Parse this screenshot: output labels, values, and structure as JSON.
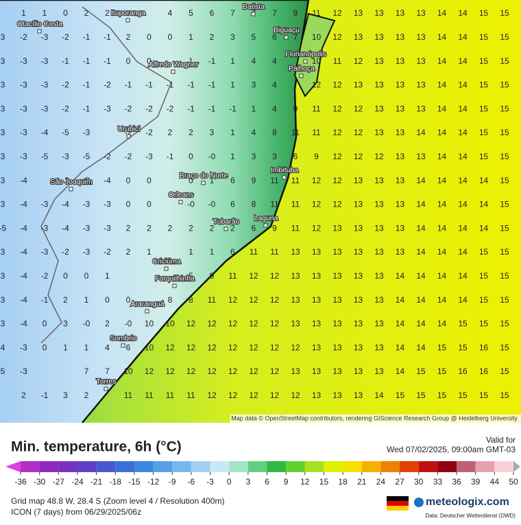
{
  "map": {
    "attribution": "Map data © OpenStreetMap contributors, rendering GIScience Research Group @ Heidelberg University",
    "cities": [
      "Otacílio Costa",
      "Ituporanga",
      "Batista",
      "Biguaçu",
      "Florianópolis",
      "Palhoça",
      "Alfredo Wagner",
      "Urubici",
      "Braço do Norte",
      "Imbituba",
      "São Joaquim",
      "Orleans",
      "Tubarão",
      "Laguna",
      "Criciúma",
      "Forquilhinha",
      "Araranguá",
      "Sombrio",
      "Torres"
    ],
    "grid": [
      [
        null,
        1,
        1,
        0,
        2,
        2,
        null,
        null,
        4,
        5,
        6,
        7,
        7,
        7,
        9,
        11,
        12,
        13,
        13,
        13,
        13,
        14,
        14,
        15,
        15
      ],
      [
        3,
        -2,
        -3,
        -2,
        -1,
        -1,
        2,
        0,
        0,
        1,
        2,
        3,
        5,
        6,
        7,
        10,
        12,
        13,
        13,
        13,
        13,
        14,
        14,
        15,
        15
      ],
      [
        3,
        -3,
        -3,
        -1,
        -1,
        -1,
        0,
        0,
        null,
        1,
        -1,
        1,
        4,
        4,
        null,
        10,
        11,
        12,
        13,
        13,
        13,
        14,
        14,
        15,
        15
      ],
      [
        3,
        -3,
        -3,
        -2,
        -1,
        -2,
        -1,
        -1,
        -1,
        -1,
        -1,
        1,
        3,
        4,
        null,
        12,
        12,
        13,
        13,
        13,
        13,
        14,
        14,
        15,
        15
      ],
      [
        3,
        -3,
        -3,
        -2,
        -1,
        -3,
        -2,
        -2,
        -2,
        -1,
        -1,
        -1,
        1,
        4,
        9,
        11,
        12,
        12,
        13,
        13,
        13,
        14,
        14,
        15,
        15
      ],
      [
        3,
        -3,
        -4,
        -5,
        -3,
        null,
        -2,
        -2,
        2,
        2,
        3,
        1,
        4,
        8,
        11,
        11,
        12,
        12,
        13,
        13,
        14,
        14,
        14,
        15,
        15
      ],
      [
        3,
        -3,
        -5,
        -3,
        -5,
        -2,
        -2,
        -3,
        -1,
        0,
        "-0",
        1,
        3,
        3,
        6,
        9,
        12,
        12,
        12,
        13,
        13,
        14,
        14,
        15,
        15
      ],
      [
        3,
        -4,
        null,
        -3,
        -2,
        -4,
        0,
        0,
        null,
        0,
        1,
        6,
        9,
        11,
        11,
        12,
        12,
        13,
        13,
        13,
        14,
        14,
        14,
        14,
        15
      ],
      [
        3,
        -4,
        -3,
        -4,
        -3,
        -3,
        0,
        0,
        null,
        "-0",
        "-0",
        6,
        8,
        11,
        11,
        12,
        12,
        13,
        13,
        13,
        14,
        14,
        14,
        14,
        15
      ],
      [
        -5,
        -4,
        -3,
        -4,
        -3,
        -3,
        2,
        2,
        2,
        2,
        2,
        2,
        6,
        9,
        11,
        12,
        13,
        13,
        13,
        13,
        14,
        14,
        14,
        14,
        15
      ],
      [
        3,
        -4,
        -3,
        -2,
        -3,
        -2,
        2,
        1,
        null,
        1,
        1,
        6,
        11,
        11,
        13,
        13,
        13,
        13,
        13,
        13,
        14,
        14,
        14,
        15,
        15
      ],
      [
        3,
        -4,
        -2,
        0,
        0,
        1,
        null,
        null,
        null,
        5,
        9,
        11,
        12,
        12,
        13,
        13,
        13,
        13,
        13,
        14,
        14,
        14,
        14,
        15,
        15
      ],
      [
        3,
        -4,
        -1,
        2,
        1,
        0,
        0,
        null,
        8,
        8,
        11,
        12,
        12,
        12,
        13,
        13,
        13,
        13,
        13,
        14,
        14,
        14,
        14,
        15,
        15
      ],
      [
        3,
        -4,
        0,
        3,
        "-0",
        2,
        "-0",
        10,
        10,
        12,
        12,
        12,
        12,
        12,
        13,
        13,
        13,
        13,
        13,
        14,
        14,
        14,
        15,
        15,
        15
      ],
      [
        4,
        -3,
        0,
        1,
        1,
        4,
        6,
        10,
        12,
        12,
        12,
        12,
        12,
        12,
        12,
        13,
        13,
        13,
        13,
        14,
        14,
        15,
        15,
        16,
        15
      ],
      [
        5,
        -3,
        null,
        null,
        7,
        7,
        10,
        12,
        12,
        12,
        12,
        12,
        12,
        12,
        13,
        13,
        13,
        13,
        13,
        14,
        15,
        15,
        16,
        16,
        15
      ],
      [
        null,
        2,
        -1,
        3,
        2,
        null,
        11,
        11,
        11,
        11,
        12,
        12,
        12,
        12,
        12,
        13,
        13,
        13,
        14,
        15,
        15,
        15,
        15,
        15,
        15
      ]
    ]
  },
  "footer": {
    "title": "Min. temperature, 6h (°C)",
    "valid_label": "Valid for",
    "valid_time": "Wed 07/02/2025, 09:00am GMT-03",
    "grid_info": "Grid map 48.8 W, 28.4 S (Zoom level 4 / Resolution 400m)",
    "model_info": "ICON (7 days) from 06/29/2025/06z",
    "brand": "meteologix.com",
    "data_source": "Data: Deutscher Wetterdienst (DWD)"
  },
  "legend": {
    "ticks": [
      -36,
      -30,
      -27,
      -24,
      -21,
      -18,
      -15,
      -12,
      -9,
      -6,
      -3,
      0,
      3,
      6,
      9,
      12,
      15,
      18,
      21,
      24,
      27,
      30,
      33,
      36,
      39,
      44,
      50
    ],
    "colors": [
      "#e040e0",
      "#b030c8",
      "#9028c0",
      "#7830c0",
      "#6040c8",
      "#4858d0",
      "#3a70d8",
      "#3c88e0",
      "#58a0e8",
      "#78b8ee",
      "#a0d0f2",
      "#c8e8f6",
      "#a0e6c8",
      "#60d080",
      "#30b840",
      "#60d030",
      "#a8e020",
      "#e0f000",
      "#f8e000",
      "#f8b000",
      "#f08000",
      "#e04000",
      "#c01010",
      "#900010",
      "#c06078",
      "#e8a0b0",
      "#f8d0d8",
      "#a8a8a8"
    ]
  }
}
